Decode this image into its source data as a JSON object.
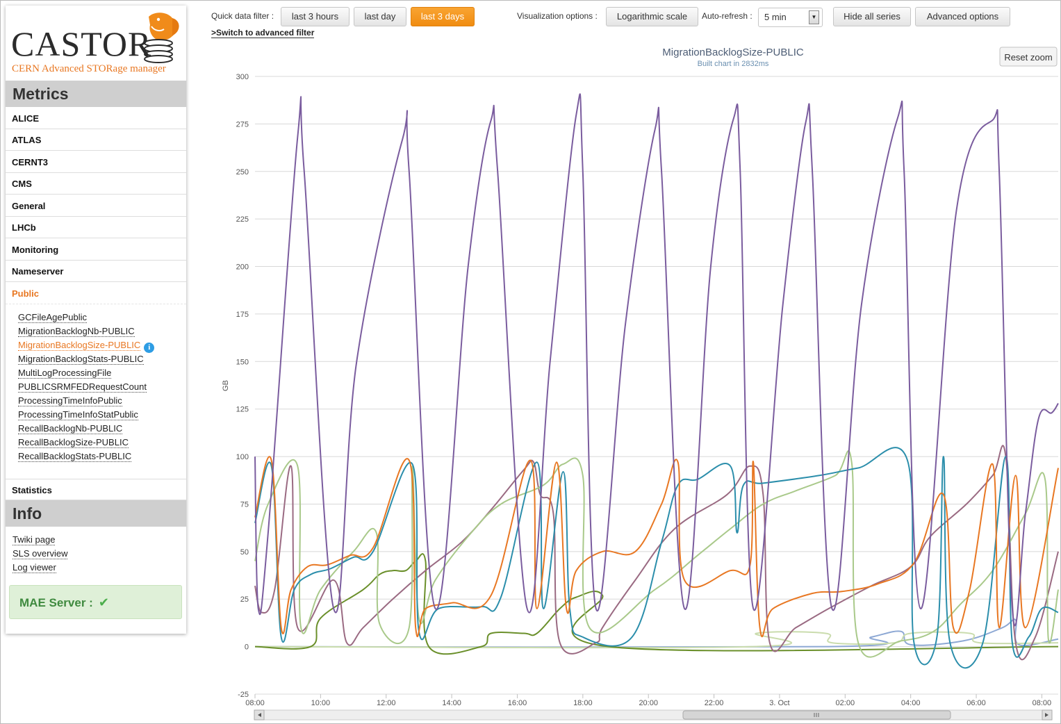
{
  "logo": {
    "brand": "CASTOR",
    "tagline": "CERN Advanced STORage manager"
  },
  "sidebar": {
    "metrics_title": "Metrics",
    "categories": [
      "ALICE",
      "ATLAS",
      "CERNT3",
      "CMS",
      "General",
      "LHCb",
      "Monitoring",
      "Nameserver",
      "Public"
    ],
    "active_category": "Public",
    "public_items": [
      "GCFileAgePublic",
      "MigrationBacklogNb-PUBLIC",
      "MigrationBacklogSize-PUBLIC",
      "MigrationBacklogStats-PUBLIC",
      "MultiLogProcessingFile",
      "PUBLICSRMFEDRequestCount",
      "ProcessingTimeInfoPublic",
      "ProcessingTimeInfoStatPublic",
      "RecallBacklogNb-PUBLIC",
      "RecallBacklogSize-PUBLIC",
      "RecallBacklogStats-PUBLIC"
    ],
    "active_item": "MigrationBacklogSize-PUBLIC",
    "info_icon": "info-icon",
    "statistics": "Statistics",
    "info_title": "Info",
    "info_links": [
      "Twiki page",
      "SLS overview",
      "Log viewer"
    ],
    "server_status": {
      "label": "MAE Server :",
      "icon": "check-icon",
      "color": "#4cae4c"
    }
  },
  "toolbar": {
    "quick_filter_label": "Quick data filter :",
    "filters": [
      "last 3 hours",
      "last day",
      "last 3 days"
    ],
    "active_filter": "last 3 days",
    "advanced_filter_link": ">Switch to advanced filter",
    "viz_label": "Visualization options :",
    "log_scale": "Logarithmic scale",
    "auto_refresh_label": "Auto-refresh :",
    "auto_refresh_value": "5 min",
    "hide_all": "Hide all series",
    "advanced_options": "Advanced options",
    "reset_zoom": "Reset zoom"
  },
  "colors": {
    "accent": "#e87722",
    "active_button": "#f39a1e",
    "success": "#4cae4c"
  },
  "chart_data": {
    "type": "line",
    "title": "MigrationBacklogSize-PUBLIC",
    "subtitle": "Built chart in 2832ms",
    "xlabel": "",
    "ylabel": "GB",
    "ylim": [
      -25,
      300
    ],
    "yticks": [
      -25,
      0,
      25,
      50,
      75,
      100,
      125,
      150,
      175,
      200,
      225,
      250,
      275,
      300
    ],
    "xlim": [
      0,
      24.5
    ],
    "xticks": [
      {
        "x": 0,
        "label": "08:00"
      },
      {
        "x": 2,
        "label": "10:00"
      },
      {
        "x": 4,
        "label": "12:00"
      },
      {
        "x": 6,
        "label": "14:00"
      },
      {
        "x": 8,
        "label": "16:00"
      },
      {
        "x": 10,
        "label": "18:00"
      },
      {
        "x": 12,
        "label": "20:00"
      },
      {
        "x": 14,
        "label": "22:00"
      },
      {
        "x": 16,
        "label": "3. Oct"
      },
      {
        "x": 18,
        "label": "02:00"
      },
      {
        "x": 20,
        "label": "04:00"
      },
      {
        "x": 22,
        "label": "06:00"
      },
      {
        "x": 24,
        "label": "08:00"
      }
    ],
    "grid": true,
    "series": [
      {
        "color": "#7a5c9e",
        "points": [
          [
            0,
            100
          ],
          [
            0.1,
            20
          ],
          [
            0.4,
            60
          ],
          [
            1.3,
            268
          ],
          [
            1.5,
            250
          ],
          [
            2.4,
            20
          ],
          [
            3.1,
            150
          ],
          [
            4.5,
            267
          ],
          [
            4.7,
            250
          ],
          [
            5.5,
            20
          ],
          [
            6.5,
            200
          ],
          [
            7.2,
            277
          ],
          [
            7.4,
            250
          ],
          [
            8.3,
            20
          ],
          [
            9,
            150
          ],
          [
            9.8,
            280
          ],
          [
            10,
            250
          ],
          [
            10.4,
            20
          ],
          [
            11.3,
            170
          ],
          [
            12.2,
            272
          ],
          [
            12.4,
            250
          ],
          [
            13.1,
            20
          ],
          [
            13.9,
            200
          ],
          [
            14.6,
            278
          ],
          [
            14.8,
            250
          ],
          [
            15.2,
            20
          ],
          [
            16.1,
            180
          ],
          [
            16.8,
            276
          ],
          [
            17,
            250
          ],
          [
            17.6,
            20
          ],
          [
            18.5,
            180
          ],
          [
            19.6,
            278
          ],
          [
            19.8,
            250
          ],
          [
            20.3,
            20
          ],
          [
            21.4,
            230
          ],
          [
            22.5,
            277
          ],
          [
            22.7,
            250
          ],
          [
            23.1,
            20
          ],
          [
            23.5,
            70
          ],
          [
            23.9,
            120
          ],
          [
            24.3,
            123
          ],
          [
            24.5,
            128
          ]
        ]
      },
      {
        "color": "#e87722",
        "points": [
          [
            0,
            68
          ],
          [
            0.5,
            98
          ],
          [
            0.8,
            10
          ],
          [
            1.1,
            30
          ],
          [
            1.6,
            42
          ],
          [
            2.2,
            43
          ],
          [
            2.9,
            48
          ],
          [
            3.6,
            52
          ],
          [
            4.7,
            98
          ],
          [
            4.9,
            10
          ],
          [
            5.2,
            20
          ],
          [
            6,
            23
          ],
          [
            7.2,
            27
          ],
          [
            8.4,
            98
          ],
          [
            8.6,
            20
          ],
          [
            9.2,
            97
          ],
          [
            9.5,
            20
          ],
          [
            9.8,
            40
          ],
          [
            10.6,
            50
          ],
          [
            11.6,
            50
          ],
          [
            12.4,
            75
          ],
          [
            12.9,
            97
          ],
          [
            13.1,
            35
          ],
          [
            14.5,
            40
          ],
          [
            15.1,
            43
          ],
          [
            15.2,
            97
          ],
          [
            15.4,
            10
          ],
          [
            15.8,
            20
          ],
          [
            17,
            28
          ],
          [
            17.9,
            29
          ],
          [
            19,
            33
          ],
          [
            20.1,
            44
          ],
          [
            21,
            80
          ],
          [
            21.3,
            10
          ],
          [
            21.8,
            30
          ],
          [
            22.5,
            96
          ],
          [
            22.7,
            10
          ],
          [
            23.2,
            90
          ],
          [
            23.5,
            10
          ],
          [
            24.5,
            94
          ]
        ]
      },
      {
        "color": "#2b8eab",
        "points": [
          [
            0,
            65
          ],
          [
            0.5,
            95
          ],
          [
            0.8,
            5
          ],
          [
            1.2,
            30
          ],
          [
            1.7,
            38
          ],
          [
            2.3,
            41
          ],
          [
            3,
            47
          ],
          [
            3.6,
            50
          ],
          [
            4.8,
            96
          ],
          [
            5,
            8
          ],
          [
            5.6,
            20
          ],
          [
            6.9,
            21
          ],
          [
            7.5,
            26
          ],
          [
            8.6,
            97
          ],
          [
            8.8,
            20
          ],
          [
            9.4,
            92
          ],
          [
            9.6,
            20
          ],
          [
            10,
            5
          ],
          [
            11.5,
            5
          ],
          [
            12.4,
            55
          ],
          [
            12.9,
            85
          ],
          [
            13.5,
            88
          ],
          [
            14.5,
            95
          ],
          [
            14.7,
            60
          ],
          [
            14.9,
            85
          ],
          [
            15.5,
            86
          ],
          [
            17.2,
            90
          ],
          [
            18.4,
            94
          ],
          [
            19.9,
            98
          ],
          [
            20.1,
            2
          ],
          [
            20.8,
            5
          ],
          [
            21,
            100
          ],
          [
            21.2,
            2
          ],
          [
            22.2,
            2
          ],
          [
            22.9,
            100
          ],
          [
            23.1,
            2
          ],
          [
            23.6,
            5
          ],
          [
            24,
            20
          ],
          [
            24.5,
            18
          ]
        ]
      },
      {
        "color": "#a9c98a",
        "points": [
          [
            0,
            45
          ],
          [
            0.4,
            75
          ],
          [
            1.3,
            95
          ],
          [
            1.4,
            10
          ],
          [
            2,
            30
          ],
          [
            3,
            50
          ],
          [
            3.7,
            60
          ],
          [
            3.8,
            12
          ],
          [
            4.7,
            10
          ],
          [
            4.8,
            95
          ],
          [
            5,
            15
          ],
          [
            5.5,
            35
          ],
          [
            6.6,
            60
          ],
          [
            7.5,
            75
          ],
          [
            8.8,
            85
          ],
          [
            9.4,
            96
          ],
          [
            10,
            90
          ],
          [
            10.2,
            10
          ],
          [
            12.2,
            30
          ],
          [
            13.5,
            48
          ],
          [
            14.5,
            62
          ],
          [
            15.5,
            75
          ],
          [
            16.5,
            82
          ],
          [
            17.7,
            90
          ],
          [
            18.2,
            97
          ],
          [
            18.4,
            2
          ],
          [
            19.7,
            3
          ],
          [
            20.7,
            8
          ],
          [
            21.5,
            22
          ],
          [
            22.5,
            40
          ],
          [
            23.5,
            70
          ],
          [
            24.1,
            88
          ],
          [
            24.2,
            4
          ],
          [
            24.5,
            30
          ]
        ]
      },
      {
        "color": "#9a6a82",
        "points": [
          [
            0,
            32
          ],
          [
            0.2,
            18
          ],
          [
            0.6,
            30
          ],
          [
            1.1,
            95
          ],
          [
            1.3,
            10
          ],
          [
            2.4,
            35
          ],
          [
            2.8,
            2
          ],
          [
            3.3,
            10
          ],
          [
            4.2,
            25
          ],
          [
            5.2,
            40
          ],
          [
            6.3,
            55
          ],
          [
            7.2,
            72
          ],
          [
            8.2,
            93
          ],
          [
            8.5,
            97
          ],
          [
            8.7,
            80
          ],
          [
            9.1,
            70
          ],
          [
            9.3,
            2
          ],
          [
            10.4,
            2
          ],
          [
            10.6,
            10
          ],
          [
            11.6,
            35
          ],
          [
            12.8,
            62
          ],
          [
            14.4,
            80
          ],
          [
            15.1,
            95
          ],
          [
            15.5,
            80
          ],
          [
            15.7,
            2
          ],
          [
            16.5,
            10
          ],
          [
            17.5,
            20
          ],
          [
            18.8,
            32
          ],
          [
            20,
            42
          ],
          [
            20.6,
            58
          ],
          [
            21.7,
            75
          ],
          [
            22.5,
            90
          ],
          [
            22.9,
            100
          ],
          [
            23.2,
            2
          ],
          [
            23.8,
            5
          ],
          [
            24.5,
            50
          ]
        ]
      },
      {
        "color": "#6a8f2a",
        "points": [
          [
            0,
            0
          ],
          [
            1.7,
            0
          ],
          [
            2,
            15
          ],
          [
            3.3,
            30
          ],
          [
            3.8,
            38
          ],
          [
            4.2,
            40
          ],
          [
            4.6,
            40
          ],
          [
            4.9,
            45
          ],
          [
            5.2,
            45
          ],
          [
            5.3,
            0
          ],
          [
            6.9,
            0
          ],
          [
            7.2,
            7
          ],
          [
            8.2,
            7
          ],
          [
            8.6,
            7
          ],
          [
            9.3,
            20
          ],
          [
            9.8,
            26
          ],
          [
            10.6,
            27
          ],
          [
            10.8,
            0
          ],
          [
            24.5,
            0
          ]
        ]
      },
      {
        "color": "#cadcad",
        "points": [
          [
            0,
            0
          ],
          [
            15.2,
            0
          ],
          [
            15.3,
            7
          ],
          [
            17.4,
            7
          ],
          [
            17.6,
            2
          ],
          [
            19.5,
            2
          ],
          [
            20,
            7
          ],
          [
            21.8,
            7
          ],
          [
            22.1,
            2
          ],
          [
            24.5,
            2
          ]
        ]
      },
      {
        "color": "#8da8d4",
        "points": [
          [
            0,
            0
          ],
          [
            17.5,
            0
          ],
          [
            18.8,
            5
          ],
          [
            19.7,
            8
          ],
          [
            20,
            1
          ],
          [
            21.6,
            3
          ],
          [
            22.8,
            10
          ],
          [
            23.2,
            14
          ],
          [
            23.3,
            1
          ],
          [
            24.5,
            4
          ]
        ]
      }
    ]
  }
}
